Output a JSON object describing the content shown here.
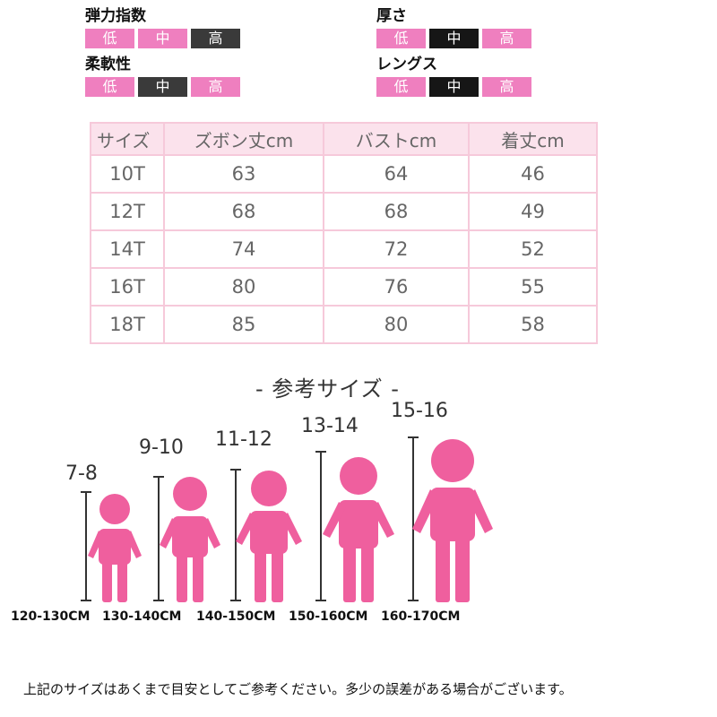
{
  "attributes": [
    {
      "label": "弾力指数",
      "levels": [
        "低",
        "中",
        "高"
      ],
      "selected": 2
    },
    {
      "label": "厚さ",
      "levels": [
        "低",
        "中",
        "高"
      ],
      "selected": 1
    },
    {
      "label": "柔軟性",
      "levels": [
        "低",
        "中",
        "高"
      ],
      "selected": 1
    },
    {
      "label": "レングス",
      "levels": [
        "低",
        "中",
        "高"
      ],
      "selected": 1
    }
  ],
  "size_table": {
    "headers": [
      "サイズ",
      "ズボン丈cm",
      "バストcm",
      "着丈cm"
    ],
    "rows": [
      [
        "10T",
        "63",
        "64",
        "46"
      ],
      [
        "12T",
        "68",
        "68",
        "49"
      ],
      [
        "14T",
        "74",
        "72",
        "52"
      ],
      [
        "16T",
        "80",
        "76",
        "55"
      ],
      [
        "18T",
        "85",
        "80",
        "58"
      ]
    ]
  },
  "reference": {
    "title": "- 参考サイズ -",
    "groups": [
      {
        "age": "7-8",
        "height": "120-130CM"
      },
      {
        "age": "9-10",
        "height": "130-140CM"
      },
      {
        "age": "11-12",
        "height": "140-150CM"
      },
      {
        "age": "13-14",
        "height": "150-160CM"
      },
      {
        "age": "15-16",
        "height": "160-170CM"
      }
    ]
  },
  "note": "上記のサイズはあくまで目安としてご参考ください。多少の誤差がある場合がございます。",
  "colors": {
    "pink": "#ef7fbf",
    "figure": "#ef5f9e",
    "dark": "#3a3a3a",
    "table_header": "#fbe2ec",
    "table_border": "#f6c9da"
  }
}
